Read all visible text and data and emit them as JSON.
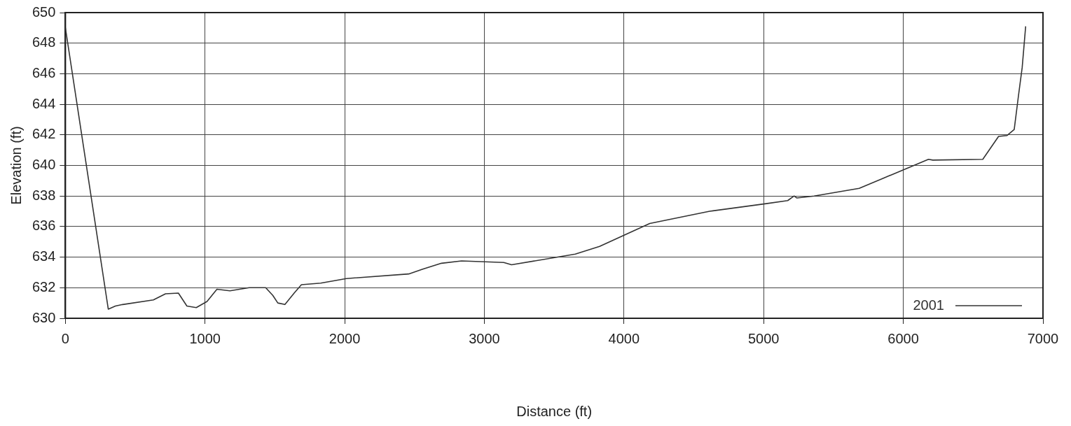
{
  "chart_data": {
    "type": "line",
    "xlabel": "Distance (ft)",
    "ylabel": "Elevation (ft)",
    "xlim": [
      0,
      7000
    ],
    "xticks": [
      0,
      1000,
      2000,
      3000,
      4000,
      5000,
      6000,
      7000
    ],
    "ylim": [
      630,
      650
    ],
    "yticks": [
      630,
      632,
      634,
      636,
      638,
      640,
      642,
      644,
      646,
      648,
      650
    ],
    "grid": true,
    "legend": "bottom right",
    "marker": "none",
    "line_style": "solid",
    "series": [
      {
        "name": "2001",
        "color": "#333333",
        "x": [
          0,
          307,
          358,
          410,
          630,
          717,
          809,
          870,
          937,
          1014,
          1085,
          1178,
          1316,
          1434,
          1485,
          1521,
          1572,
          1638,
          1690,
          1828,
          2012,
          2458,
          2555,
          2693,
          2837,
          3139,
          3195,
          3651,
          3825,
          4184,
          4613,
          5018,
          5172,
          5218,
          5238,
          5361,
          5684,
          6180,
          6211,
          6569,
          6682,
          6743,
          6794,
          6825,
          6851,
          6876
        ],
        "values": [
          649.0,
          630.6,
          630.8,
          630.9,
          631.2,
          631.6,
          631.65,
          630.8,
          630.7,
          631.1,
          631.9,
          631.8,
          632.0,
          632.0,
          631.5,
          631.0,
          630.9,
          631.65,
          632.2,
          632.3,
          632.6,
          632.9,
          633.2,
          633.6,
          633.75,
          633.65,
          633.5,
          634.2,
          634.7,
          636.2,
          637.0,
          637.5,
          637.7,
          638.0,
          637.87,
          638.0,
          638.5,
          640.4,
          640.35,
          640.4,
          641.9,
          641.96,
          642.35,
          644.6,
          646.4,
          649.1
        ]
      }
    ]
  }
}
